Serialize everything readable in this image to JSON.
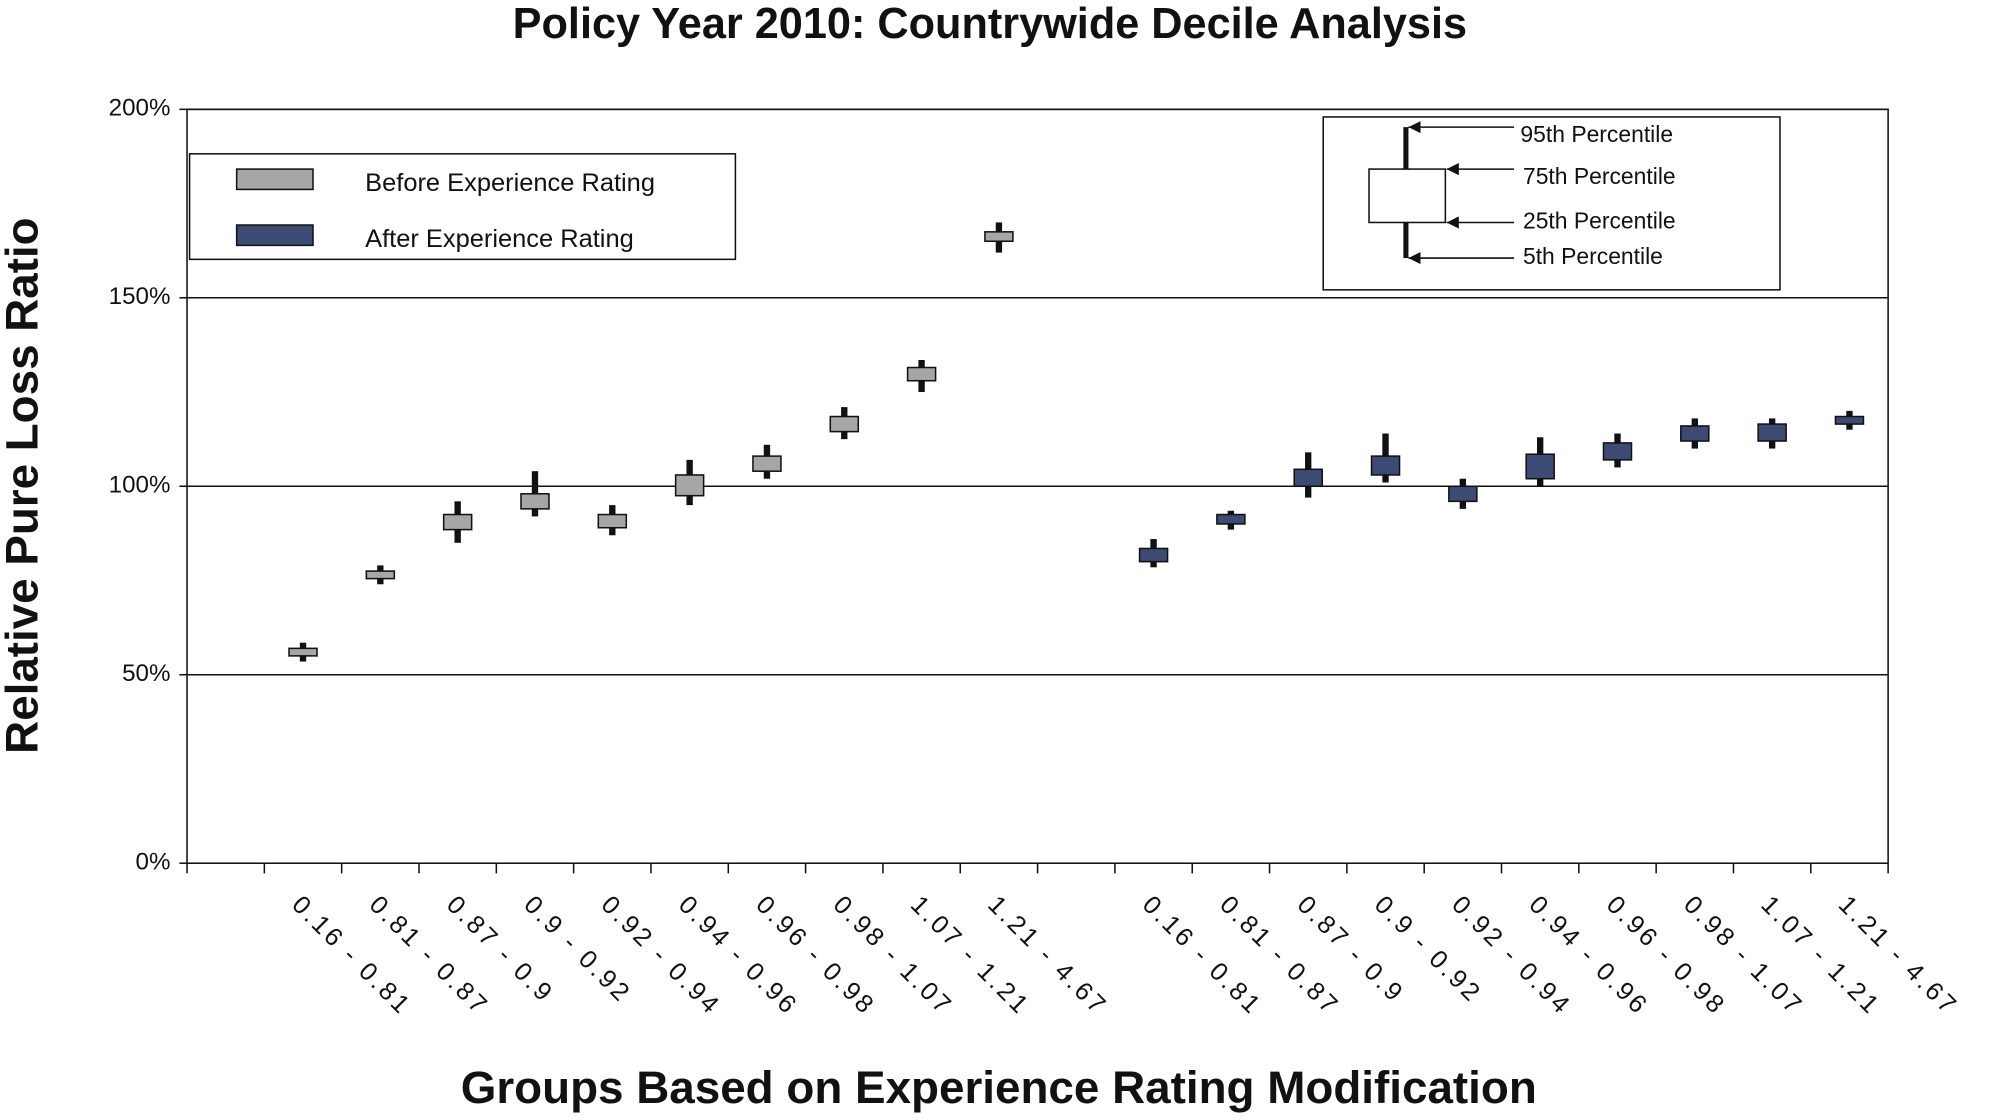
{
  "chart_data": {
    "type": "box",
    "title": "Policy Year 2010: Countrywide Decile Analysis",
    "y_label": "Relative Pure Loss Ratio",
    "x_label": "Groups Based on Experience Rating Modification",
    "categories": [
      null,
      "0.16 - 0.81",
      "0.81 - 0.87",
      "0.87 - 0.9",
      "0.9 - 0.92",
      "0.92 - 0.94",
      "0.94 - 0.96",
      "0.96 - 0.98",
      "0.98 - 1.07",
      "1.07 - 1.21",
      "1.21 - 4.67",
      null,
      "0.16 - 0.81",
      "0.81 - 0.87",
      "0.87 - 0.9",
      "0.9 - 0.92",
      "0.92 - 0.94",
      "0.94 - 0.96",
      "0.96 - 0.98",
      "0.98 - 1.07",
      "1.07 - 1.21",
      "1.21 - 4.67"
    ],
    "series": [
      {
        "name": "Before Experience Rating",
        "color": "#a6a6a6",
        "p5": [
          null,
          53.5,
          74,
          85,
          92,
          87,
          95,
          102,
          112.5,
          125,
          162,
          null,
          null,
          null,
          null,
          null,
          null,
          null,
          null,
          null,
          null,
          null
        ],
        "p25": [
          null,
          55,
          75.5,
          88.5,
          94,
          89,
          97.5,
          104,
          114.5,
          128,
          165,
          null,
          null,
          null,
          null,
          null,
          null,
          null,
          null,
          null,
          null,
          null
        ],
        "p75": [
          null,
          57,
          77.5,
          92.5,
          98,
          92.5,
          103,
          108,
          118.5,
          131.5,
          167.5,
          null,
          null,
          null,
          null,
          null,
          null,
          null,
          null,
          null,
          null,
          null
        ],
        "p95": [
          null,
          58.5,
          79,
          96,
          104,
          95,
          107,
          111,
          121,
          133.5,
          170,
          null,
          null,
          null,
          null,
          null,
          null,
          null,
          null,
          null,
          null,
          null
        ]
      },
      {
        "name": "After Experience Rating",
        "color": "#3d4a74",
        "p5": [
          null,
          null,
          null,
          null,
          null,
          null,
          null,
          null,
          null,
          null,
          null,
          null,
          78.5,
          88.5,
          97,
          101,
          94,
          100,
          105,
          110,
          110,
          115
        ],
        "p25": [
          null,
          null,
          null,
          null,
          null,
          null,
          null,
          null,
          null,
          null,
          null,
          null,
          80,
          90,
          100,
          103,
          96,
          102,
          107,
          112,
          112,
          116.5
        ],
        "p75": [
          null,
          null,
          null,
          null,
          null,
          null,
          null,
          null,
          null,
          null,
          null,
          null,
          83.5,
          92.5,
          104.5,
          108,
          100,
          108.5,
          111.5,
          116,
          116.5,
          118.5
        ],
        "p95": [
          null,
          null,
          null,
          null,
          null,
          null,
          null,
          null,
          null,
          null,
          null,
          null,
          86,
          93.5,
          109,
          114,
          102,
          113,
          114,
          118,
          118,
          120
        ]
      }
    ],
    "ylim": [
      0,
      200
    ],
    "yticks": [
      {
        "value": 0,
        "label": "0%"
      },
      {
        "value": 50,
        "label": "50%"
      },
      {
        "value": 100,
        "label": "100%"
      },
      {
        "value": 150,
        "label": "150%"
      },
      {
        "value": 200,
        "label": "200%"
      }
    ],
    "grid": true,
    "legend": "upper left",
    "percentile_key": [
      "95th Percentile",
      "75th Percentile",
      "25th Percentile",
      "5th Percentile"
    ]
  }
}
